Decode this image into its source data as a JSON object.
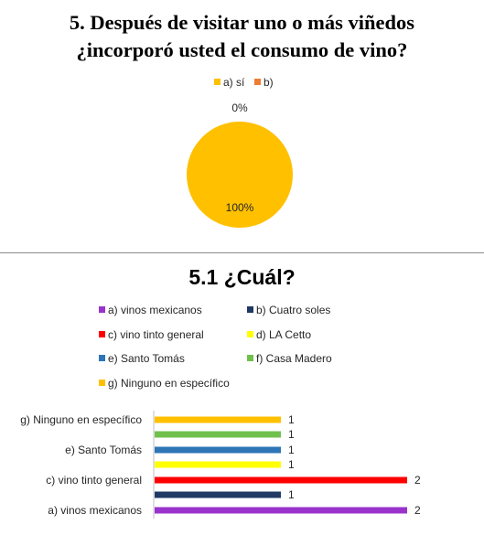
{
  "top": {
    "title_line1": "5. Después de visitar uno o más viñedos",
    "title_line2": "¿incorporó usted el consumo de vino?"
  },
  "bottom": {
    "title": "5.1 ¿Cuál?"
  },
  "chart_data": [
    {
      "type": "pie",
      "categories": [
        "a) sí",
        "b)"
      ],
      "values": [
        100,
        0
      ],
      "data_labels": [
        "100%",
        "0%"
      ],
      "colors": [
        "#FFC000",
        "#ED7D31"
      ],
      "legend_position": "top"
    },
    {
      "type": "bar",
      "orientation": "horizontal",
      "categories": [
        "a) vinos mexicanos",
        "b) Cuatro soles",
        "c) vino tinto general",
        "d) LA Cetto",
        "e) Santo Tomás",
        "f) Casa Madero",
        "g) Ninguno en específico"
      ],
      "values": [
        2,
        1,
        2,
        1,
        1,
        1,
        1
      ],
      "colors": [
        "#9933CC",
        "#1F3864",
        "#FF0000",
        "#FFFF00",
        "#2E75B6",
        "#70C04C",
        "#FFC000"
      ],
      "tick_labels": [
        "a) vinos mexicanos",
        "c) vino tinto general",
        "e) Santo Tomás",
        "g) Ninguno en específico"
      ],
      "xlim": [
        0,
        2
      ],
      "legend_position": "top",
      "grid": false
    }
  ]
}
